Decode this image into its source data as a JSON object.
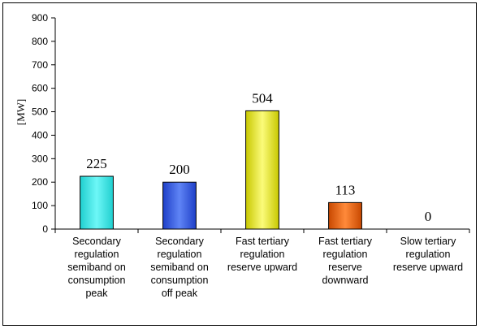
{
  "chart_data": {
    "type": "bar",
    "title": "",
    "xlabel": "",
    "ylabel": "[MW]",
    "ylim": [
      0,
      900
    ],
    "yticks": [
      0,
      100,
      200,
      300,
      400,
      500,
      600,
      700,
      800,
      900
    ],
    "grid": false,
    "legend": "none",
    "categories": [
      [
        "Secondary",
        "regulation",
        "semiband on",
        "consumption",
        "peak"
      ],
      [
        "Secondary",
        "regulation",
        "semiband on",
        "consumption",
        "off peak"
      ],
      [
        "Fast tertiary",
        "regulation",
        "reserve upward"
      ],
      [
        "Fast tertiary",
        "regulation",
        "reserve",
        "downward"
      ],
      [
        "Slow tertiary",
        "regulation",
        "reserve upward"
      ]
    ],
    "values": [
      225,
      200,
      504,
      113,
      0
    ],
    "bar_colors": [
      [
        "#1fcfcf",
        "#6ef7f7"
      ],
      [
        "#1e3fc8",
        "#5f84f5"
      ],
      [
        "#c8c800",
        "#fbfb7a"
      ],
      [
        "#c84800",
        "#ff8a3a"
      ],
      [
        "#888888",
        "#cccccc"
      ]
    ]
  }
}
